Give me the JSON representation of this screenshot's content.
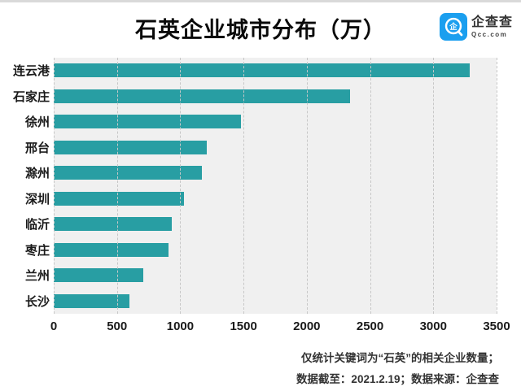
{
  "header": {
    "title": "石英企业城市分布（万）",
    "logo": {
      "name": "企查查",
      "domain": "Qcc.com",
      "brand_color": "#1B9FEF"
    }
  },
  "chart_data": {
    "type": "bar",
    "orientation": "horizontal",
    "title": "石英企业城市分布（万）",
    "categories": [
      "连云港",
      "石家庄",
      "徐州",
      "邢台",
      "滁州",
      "深圳",
      "临沂",
      "枣庄",
      "兰州",
      "长沙"
    ],
    "values": [
      3290,
      2340,
      1480,
      1210,
      1170,
      1030,
      930,
      910,
      710,
      600
    ],
    "xlim": [
      0,
      3500
    ],
    "x_ticks": [
      "0",
      "500",
      "1000",
      "1500",
      "2000",
      "2500",
      "3000",
      "3500"
    ],
    "xlabel": "",
    "ylabel": "",
    "bar_color": "#289EA3",
    "plot_bg": "#f0f0f0",
    "grid": "vertical-dashed",
    "legend": "none"
  },
  "footer": {
    "line1": "仅统计关键词为“石英”的相关企业数量；",
    "line2": "数据截至：2021.2.19；数据来源：企查查"
  }
}
